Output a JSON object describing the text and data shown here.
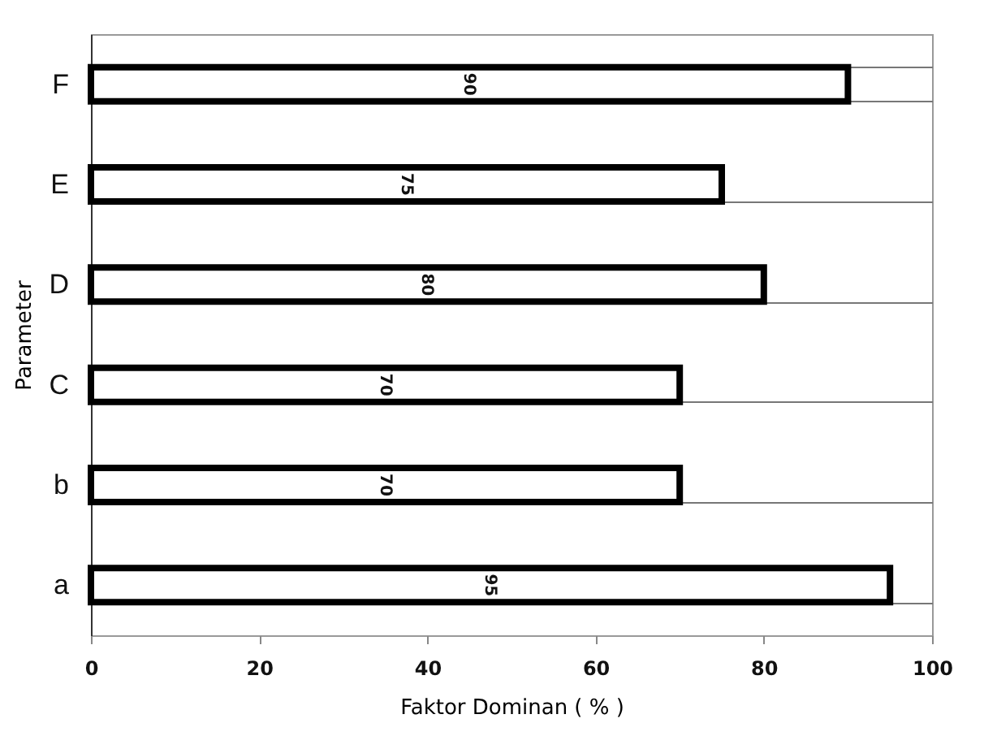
{
  "chart_data": {
    "type": "bar",
    "orientation": "horizontal",
    "xlabel": "Faktor Dominan ( % )",
    "ylabel": "Parameter",
    "categories": [
      "F",
      "E",
      "D",
      "C",
      "b",
      "a"
    ],
    "values": [
      90,
      75,
      80,
      70,
      70,
      95
    ],
    "color": "#ffffff",
    "xlim": [
      0,
      100
    ],
    "xticks": [
      0,
      20,
      40,
      60,
      80,
      100
    ],
    "grid": "y",
    "data_labels": true
  }
}
